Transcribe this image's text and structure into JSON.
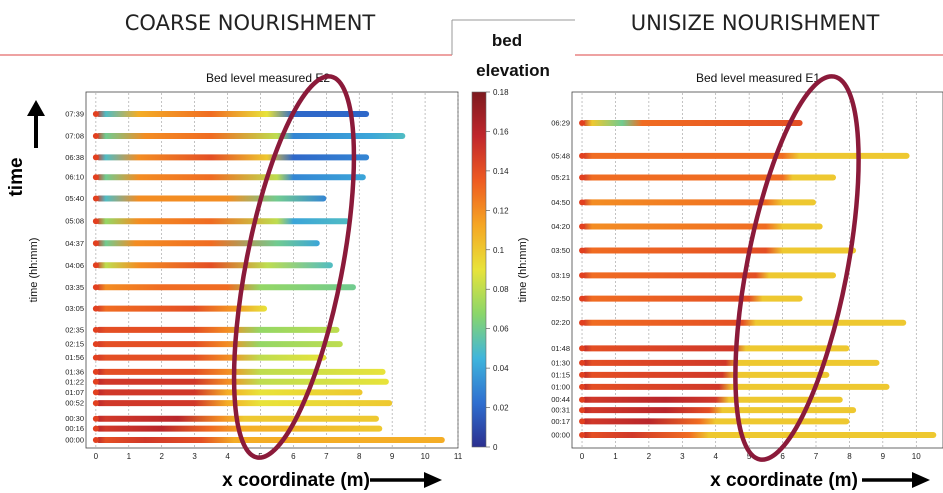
{
  "headers": {
    "left": "COARSE NOURISHMENT",
    "right": "UNISIZE NOURISHMENT"
  },
  "colorbar": {
    "label_line1": "bed",
    "label_line2": "elevation",
    "ticks": [
      "0.18",
      "0.16",
      "0.14",
      "0.12",
      "0.1",
      "0.08",
      "0.06",
      "0.04",
      "0.02",
      "0"
    ],
    "stops": [
      "#2b2f8f",
      "#2f6fd0",
      "#3fb5dc",
      "#8ad66a",
      "#e8e33a",
      "#f5a623",
      "#ee5b22",
      "#c1272d",
      "#7d1a1f"
    ]
  },
  "arrow_labels": {
    "time": "time",
    "x": "x coordinate (m)"
  },
  "highlight_color": "#8b1a3a",
  "chart_data": [
    {
      "type": "heatmap",
      "title": "Bed level measured E2",
      "xlabel": "",
      "ylabel": "time (hh:mm)",
      "xlim": [
        -0.3,
        11
      ],
      "xticks": [
        "0",
        "1",
        "2",
        "3",
        "4",
        "5",
        "6",
        "7",
        "8",
        "9",
        "10",
        "11"
      ],
      "grid": true,
      "ytick_labels": [
        "07:39",
        "07:08",
        "06:38",
        "06:10",
        "05:40",
        "05:08",
        "04:37",
        "04:06",
        "03:35",
        "03:05",
        "02:35",
        "02:15",
        "01:56",
        "01:36",
        "01:22",
        "01:07",
        "00:52",
        "00:30",
        "00:16",
        "00:00"
      ],
      "rows": [
        {
          "t": 459,
          "end": 8.3,
          "z": [
            [
              0,
              0.15
            ],
            [
              0.3,
              0.05
            ],
            [
              1.3,
              0.11
            ],
            [
              3.5,
              0.13
            ],
            [
              5.2,
              0.09
            ],
            [
              6,
              0.02
            ],
            [
              8.3,
              0.02
            ]
          ]
        },
        {
          "t": 428,
          "end": 9.4,
          "z": [
            [
              0,
              0.15
            ],
            [
              0.3,
              0.06
            ],
            [
              1.5,
              0.12
            ],
            [
              3.5,
              0.13
            ],
            [
              5.5,
              0.08
            ],
            [
              6,
              0.03
            ],
            [
              8.3,
              0.04
            ],
            [
              9.4,
              0.05
            ]
          ]
        },
        {
          "t": 398,
          "end": 8.3,
          "z": [
            [
              0,
              0.15
            ],
            [
              0.3,
              0.05
            ],
            [
              1.3,
              0.12
            ],
            [
              3.5,
              0.14
            ],
            [
              5.2,
              0.1
            ],
            [
              6,
              0.02
            ],
            [
              8.3,
              0.03
            ]
          ]
        },
        {
          "t": 370,
          "end": 8.2,
          "z": [
            [
              0,
              0.15
            ],
            [
              0.3,
              0.06
            ],
            [
              1.3,
              0.12
            ],
            [
              3.5,
              0.13
            ],
            [
              5.5,
              0.08
            ],
            [
              6,
              0.03
            ],
            [
              8.2,
              0.04
            ]
          ]
        },
        {
          "t": 340,
          "end": 7.0,
          "z": [
            [
              0,
              0.15
            ],
            [
              0.3,
              0.05
            ],
            [
              1.3,
              0.12
            ],
            [
              4,
              0.12
            ],
            [
              5.5,
              0.06
            ],
            [
              7,
              0.03
            ]
          ]
        },
        {
          "t": 308,
          "end": 7.7,
          "z": [
            [
              0,
              0.15
            ],
            [
              0.3,
              0.07
            ],
            [
              1.3,
              0.12
            ],
            [
              3.5,
              0.13
            ],
            [
              5.5,
              0.08
            ],
            [
              6,
              0.04
            ],
            [
              7.7,
              0.05
            ]
          ]
        },
        {
          "t": 277,
          "end": 6.8,
          "z": [
            [
              0,
              0.15
            ],
            [
              0.3,
              0.06
            ],
            [
              1.2,
              0.12
            ],
            [
              3.5,
              0.13
            ],
            [
              5.5,
              0.06
            ],
            [
              6.8,
              0.04
            ]
          ]
        },
        {
          "t": 246,
          "end": 7.2,
          "z": [
            [
              0,
              0.15
            ],
            [
              0.3,
              0.08
            ],
            [
              1.3,
              0.12
            ],
            [
              3.5,
              0.14
            ],
            [
              5.2,
              0.08
            ],
            [
              7.2,
              0.05
            ]
          ]
        },
        {
          "t": 215,
          "end": 7.9,
          "z": [
            [
              0,
              0.15
            ],
            [
              0.3,
              0.12
            ],
            [
              2,
              0.13
            ],
            [
              4,
              0.13
            ],
            [
              5,
              0.07
            ],
            [
              7.9,
              0.06
            ]
          ]
        },
        {
          "t": 185,
          "end": 5.2,
          "z": [
            [
              0,
              0.15
            ],
            [
              0.3,
              0.13
            ],
            [
              3,
              0.14
            ],
            [
              4,
              0.12
            ],
            [
              5.2,
              0.09
            ]
          ]
        },
        {
          "t": 155,
          "end": 7.4,
          "z": [
            [
              0,
              0.15
            ],
            [
              0.3,
              0.14
            ],
            [
              3,
              0.14
            ],
            [
              4,
              0.12
            ],
            [
              5,
              0.07
            ],
            [
              7.4,
              0.08
            ]
          ]
        },
        {
          "t": 135,
          "end": 7.5,
          "z": [
            [
              0,
              0.15
            ],
            [
              0.3,
              0.14
            ],
            [
              3,
              0.14
            ],
            [
              4,
              0.12
            ],
            [
              5,
              0.07
            ],
            [
              7.5,
              0.08
            ]
          ]
        },
        {
          "t": 116,
          "end": 7.0,
          "z": [
            [
              0,
              0.15
            ],
            [
              0.3,
              0.14
            ],
            [
              3,
              0.14
            ],
            [
              4,
              0.12
            ],
            [
              5,
              0.08
            ],
            [
              7,
              0.09
            ]
          ]
        },
        {
          "t": 96,
          "end": 8.8,
          "z": [
            [
              0,
              0.16
            ],
            [
              0.3,
              0.14
            ],
            [
              3,
              0.14
            ],
            [
              4,
              0.12
            ],
            [
              5,
              0.08
            ],
            [
              8.8,
              0.09
            ]
          ]
        },
        {
          "t": 82,
          "end": 8.9,
          "z": [
            [
              0,
              0.16
            ],
            [
              0.3,
              0.15
            ],
            [
              3,
              0.15
            ],
            [
              4,
              0.12
            ],
            [
              5,
              0.08
            ],
            [
              8.9,
              0.09
            ]
          ]
        },
        {
          "t": 67,
          "end": 8.1,
          "z": [
            [
              0,
              0.16
            ],
            [
              0.3,
              0.15
            ],
            [
              3,
              0.15
            ],
            [
              4,
              0.11
            ],
            [
              5,
              0.09
            ],
            [
              8.1,
              0.1
            ]
          ]
        },
        {
          "t": 52,
          "end": 9.0,
          "z": [
            [
              0,
              0.16
            ],
            [
              0.3,
              0.15
            ],
            [
              3,
              0.15
            ],
            [
              4,
              0.11
            ],
            [
              5,
              0.09
            ],
            [
              9,
              0.1
            ]
          ]
        },
        {
          "t": 30,
          "end": 8.6,
          "z": [
            [
              0,
              0.16
            ],
            [
              0.3,
              0.15
            ],
            [
              2.5,
              0.16
            ],
            [
              3.8,
              0.12
            ],
            [
              4.5,
              0.1
            ],
            [
              8.6,
              0.1
            ]
          ]
        },
        {
          "t": 16,
          "end": 8.7,
          "z": [
            [
              0,
              0.16
            ],
            [
              0.3,
              0.15
            ],
            [
              2,
              0.16
            ],
            [
              3.5,
              0.13
            ],
            [
              4.5,
              0.11
            ],
            [
              8.7,
              0.1
            ]
          ]
        },
        {
          "t": 0,
          "end": 10.6,
          "z": [
            [
              0,
              0.16
            ],
            [
              0.3,
              0.14
            ],
            [
              1.5,
              0.15
            ],
            [
              3.2,
              0.14
            ],
            [
              4.2,
              0.11
            ],
            [
              10.6,
              0.11
            ]
          ]
        }
      ]
    },
    {
      "type": "heatmap",
      "title": "Bed level measured E1",
      "xlabel": "",
      "ylabel": "time (hh:mm)",
      "xlim": [
        -0.3,
        10.8
      ],
      "xticks": [
        "0",
        "1",
        "2",
        "3",
        "4",
        "5",
        "6",
        "7",
        "8",
        "9",
        "10"
      ],
      "grid": true,
      "ytick_labels": [
        "06:29",
        "05:48",
        "05:21",
        "04:50",
        "04:20",
        "03:50",
        "03:19",
        "02:50",
        "02:20",
        "01:48",
        "01:30",
        "01:15",
        "01:00",
        "00:44",
        "00:31",
        "00:17",
        "00:00"
      ],
      "rows": [
        {
          "t": 389,
          "end": 6.6,
          "z": [
            [
              0,
              0.15
            ],
            [
              0.3,
              0.1
            ],
            [
              1.2,
              0.06
            ],
            [
              1.8,
              0.13
            ],
            [
              6.6,
              0.14
            ]
          ]
        },
        {
          "t": 348,
          "end": 9.8,
          "z": [
            [
              0,
              0.15
            ],
            [
              0.3,
              0.13
            ],
            [
              6,
              0.13
            ],
            [
              6.5,
              0.1
            ],
            [
              9.8,
              0.1
            ]
          ]
        },
        {
          "t": 321,
          "end": 7.6,
          "z": [
            [
              0,
              0.15
            ],
            [
              0.3,
              0.13
            ],
            [
              6,
              0.13
            ],
            [
              6.3,
              0.1
            ],
            [
              7.6,
              0.1
            ]
          ]
        },
        {
          "t": 290,
          "end": 7.0,
          "z": [
            [
              0,
              0.15
            ],
            [
              0.3,
              0.12
            ],
            [
              5.5,
              0.13
            ],
            [
              6,
              0.1
            ],
            [
              7,
              0.1
            ]
          ]
        },
        {
          "t": 260,
          "end": 7.2,
          "z": [
            [
              0,
              0.15
            ],
            [
              0.3,
              0.12
            ],
            [
              5.5,
              0.13
            ],
            [
              6,
              0.1
            ],
            [
              7.2,
              0.1
            ]
          ]
        },
        {
          "t": 230,
          "end": 8.2,
          "z": [
            [
              0,
              0.15
            ],
            [
              0.3,
              0.13
            ],
            [
              5.5,
              0.14
            ],
            [
              6,
              0.1
            ],
            [
              8.2,
              0.1
            ]
          ]
        },
        {
          "t": 199,
          "end": 7.6,
          "z": [
            [
              0,
              0.15
            ],
            [
              0.3,
              0.13
            ],
            [
              5.2,
              0.14
            ],
            [
              5.6,
              0.1
            ],
            [
              7.6,
              0.1
            ]
          ]
        },
        {
          "t": 170,
          "end": 6.6,
          "z": [
            [
              0,
              0.15
            ],
            [
              0.3,
              0.13
            ],
            [
              5,
              0.14
            ],
            [
              5.4,
              0.1
            ],
            [
              6.6,
              0.1
            ]
          ]
        },
        {
          "t": 140,
          "end": 9.7,
          "z": [
            [
              0,
              0.15
            ],
            [
              0.3,
              0.13
            ],
            [
              4.8,
              0.14
            ],
            [
              5.2,
              0.1
            ],
            [
              9.7,
              0.1
            ]
          ]
        },
        {
          "t": 108,
          "end": 8.0,
          "z": [
            [
              0,
              0.16
            ],
            [
              0.3,
              0.14
            ],
            [
              4.5,
              0.15
            ],
            [
              4.9,
              0.1
            ],
            [
              8,
              0.1
            ]
          ]
        },
        {
          "t": 90,
          "end": 8.9,
          "z": [
            [
              0,
              0.16
            ],
            [
              0.3,
              0.14
            ],
            [
              4.3,
              0.15
            ],
            [
              4.7,
              0.1
            ],
            [
              8.9,
              0.1
            ]
          ]
        },
        {
          "t": 75,
          "end": 7.4,
          "z": [
            [
              0,
              0.16
            ],
            [
              0.3,
              0.14
            ],
            [
              4.2,
              0.15
            ],
            [
              4.6,
              0.1
            ],
            [
              7.4,
              0.1
            ]
          ]
        },
        {
          "t": 60,
          "end": 9.2,
          "z": [
            [
              0,
              0.16
            ],
            [
              0.3,
              0.14
            ],
            [
              4.1,
              0.15
            ],
            [
              4.5,
              0.1
            ],
            [
              9.2,
              0.1
            ]
          ]
        },
        {
          "t": 44,
          "end": 7.8,
          "z": [
            [
              0,
              0.16
            ],
            [
              0.3,
              0.15
            ],
            [
              2.5,
              0.16
            ],
            [
              4,
              0.15
            ],
            [
              4.4,
              0.1
            ],
            [
              7.8,
              0.1
            ]
          ]
        },
        {
          "t": 31,
          "end": 8.2,
          "z": [
            [
              0,
              0.16
            ],
            [
              0.3,
              0.15
            ],
            [
              2.5,
              0.16
            ],
            [
              3.8,
              0.14
            ],
            [
              4.2,
              0.1
            ],
            [
              8.2,
              0.1
            ]
          ]
        },
        {
          "t": 17,
          "end": 8.0,
          "z": [
            [
              0,
              0.16
            ],
            [
              0.3,
              0.15
            ],
            [
              2,
              0.16
            ],
            [
              3.5,
              0.13
            ],
            [
              4,
              0.1
            ],
            [
              8,
              0.1
            ]
          ]
        },
        {
          "t": 0,
          "end": 10.6,
          "z": [
            [
              0,
              0.16
            ],
            [
              0.3,
              0.14
            ],
            [
              1.5,
              0.15
            ],
            [
              3.2,
              0.13
            ],
            [
              3.8,
              0.1
            ],
            [
              10.6,
              0.1
            ]
          ]
        }
      ]
    }
  ]
}
